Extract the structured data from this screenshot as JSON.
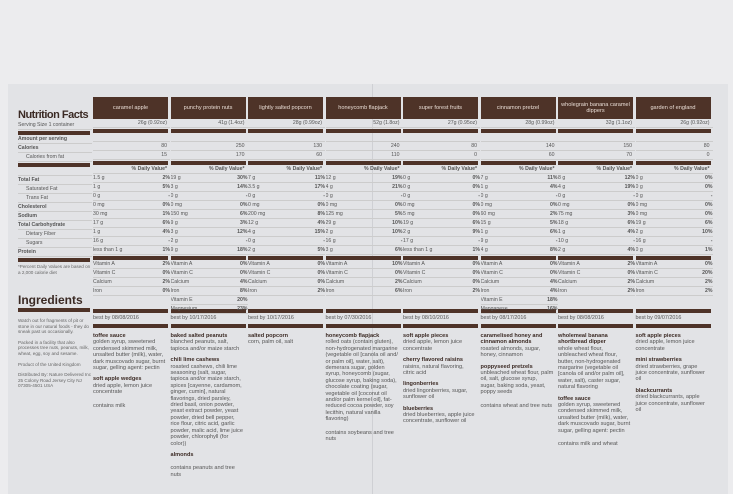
{
  "labels": {
    "title": "Nutrition Facts",
    "serving": "Serving Size 1 container",
    "amount": "Amount per serving",
    "calories": "Calories",
    "calories_fat": "Calories from fat",
    "dv": "% Daily Value*",
    "nutrients": [
      "Total Fat",
      "Saturated Fat",
      "Trans Fat",
      "Cholesterol",
      "Sodium",
      "Total Carbohydrate",
      "Dietary Fiber",
      "Sugars",
      "Protein"
    ],
    "footnote": "*Percent Daily Values are based on a 2,000 calorie diet",
    "ingredients": "Ingredients",
    "notes": [
      "Watch out for fragments of pit or stone in our natural foods - they do sneak past us occasionally.",
      "Packed in a facility that also processes tree nuts, peanuts, milk, wheat, egg, soy and sesame.",
      "Product of the United Kingdom",
      "Distributed By: Nature Delivered Inc 25 Colony Road Jersey City NJ 07305-4501 USA"
    ]
  },
  "colors": {
    "brown": "#4e3328",
    "paper": "#e2e3e6"
  },
  "products": [
    {
      "name": "caramel apple",
      "serving": "26g (0.92oz)",
      "calories": "80",
      "calories_fat": "15",
      "nutrients": [
        [
          "1.5 g",
          "2%"
        ],
        [
          "1 g",
          "5%"
        ],
        [
          "0 g",
          "-"
        ],
        [
          "0 mg",
          "0%"
        ],
        [
          "30 mg",
          "1%"
        ],
        [
          "17 g",
          "6%"
        ],
        [
          "1 g",
          "4%"
        ],
        [
          "16 g",
          "-"
        ],
        [
          "less than 1 g",
          "1%"
        ]
      ],
      "vitamins": [
        [
          "Vitamin A",
          "2%"
        ],
        [
          "Vitamin C",
          "0%"
        ],
        [
          "Calcium",
          "2%"
        ],
        [
          "Iron",
          "0%"
        ]
      ],
      "best_by": "best by 08/08/2016",
      "ingredients": [
        {
          "title": "toffee sauce",
          "text": "golden syrup, sweetened condensed skimmed milk, unsalted butter (milk), water, dark muscovado sugar, burnt sugar, gelling agent: pectin"
        },
        {
          "title": "soft apple wedges",
          "text": "dried apple, lemon juice concentrate"
        }
      ],
      "contains": "contains milk"
    },
    {
      "name": "punchy protein nuts",
      "serving": "41g (1.4oz)",
      "calories": "250",
      "calories_fat": "170",
      "nutrients": [
        [
          "19 g",
          "30%"
        ],
        [
          "3 g",
          "14%"
        ],
        [
          "0 g",
          "-"
        ],
        [
          "0 mg",
          "0%"
        ],
        [
          "150 mg",
          "6%"
        ],
        [
          "9 g",
          "3%"
        ],
        [
          "3 g",
          "12%"
        ],
        [
          "2 g",
          "-"
        ],
        [
          "9 g",
          "18%"
        ]
      ],
      "vitamins": [
        [
          "Vitamin A",
          "0%"
        ],
        [
          "Vitamin C",
          "0%"
        ],
        [
          "Calcium",
          "4%"
        ],
        [
          "Iron",
          "8%"
        ],
        [
          "Vitamin E",
          "20%"
        ],
        [
          "Magnesium",
          "23%"
        ]
      ],
      "best_by": "best by 10/17/2016",
      "ingredients": [
        {
          "title": "baked salted peanuts",
          "text": "blanched peanuts, salt, tapioca and/or maize starch"
        },
        {
          "title": "chili lime cashews",
          "text": "roasted cashews, chili lime seasoning (salt, sugar, tapioca and/or maize starch, spices [cayenne, cardamom, ginger, cumin], natural flavorings, dried parsley, dried basil, onion powder, yeast extract powder, yeast powder, dried bell pepper, rice flour, citric acid, garlic powder, malic acid, lime juice powder, chlorophyll (for color))"
        },
        {
          "title": "almonds",
          "text": ""
        }
      ],
      "contains": "contains peanuts and tree nuts"
    },
    {
      "name": "lightly salted popcorn",
      "serving": "28g (0.99oz)",
      "calories": "130",
      "calories_fat": "60",
      "nutrients": [
        [
          "7 g",
          "11%"
        ],
        [
          "3.5 g",
          "17%"
        ],
        [
          "0 g",
          "-"
        ],
        [
          "0 mg",
          "0%"
        ],
        [
          "200 mg",
          "8%"
        ],
        [
          "12 g",
          "4%"
        ],
        [
          "4 g",
          "15%"
        ],
        [
          "0 g",
          "-"
        ],
        [
          "2 g",
          "5%"
        ]
      ],
      "vitamins": [
        [
          "Vitamin A",
          "0%"
        ],
        [
          "Vitamin C",
          "0%"
        ],
        [
          "Calcium",
          "0%"
        ],
        [
          "Iron",
          "2%"
        ]
      ],
      "best_by": "best by 10/17/2016",
      "ingredients": [
        {
          "title": "salted popcorn",
          "text": "corn, palm oil, salt"
        }
      ],
      "contains": ""
    },
    {
      "name": "honeycomb flapjack",
      "serving": "52g (1.8oz)",
      "calories": "240",
      "calories_fat": "110",
      "nutrients": [
        [
          "12 g",
          "19%"
        ],
        [
          "4 g",
          "21%"
        ],
        [
          "0 g",
          "-"
        ],
        [
          "0 mg",
          "0%"
        ],
        [
          "125 mg",
          "5%"
        ],
        [
          "29 g",
          "10%"
        ],
        [
          "2 g",
          "10%"
        ],
        [
          "16 g",
          "-"
        ],
        [
          "3 g",
          "6%"
        ]
      ],
      "vitamins": [
        [
          "Vitamin A",
          "10%"
        ],
        [
          "Vitamin C",
          "0%"
        ],
        [
          "Calcium",
          "2%"
        ],
        [
          "Iron",
          "6%"
        ]
      ],
      "best_by": "best by 07/30/2016",
      "ingredients": [
        {
          "title": "honeycomb flapjack",
          "text": "rolled oats (contain gluten), non-hydrogenated margarine (vegetable oil [canola oil and/ or palm oil], water, salt), demerara sugar, golden syrup, honeycomb (sugar, glucose syrup, baking soda), chocolate coating (sugar, vegetable oil [coconut oil and/or palm kernel oil], fat-reduced cocoa powder, soy lecithin, natural vanilla flavoring)"
        }
      ],
      "contains": "contains soybeans and tree nuts"
    },
    {
      "name": "super forest fruits",
      "serving": "27g (0.95oz)",
      "calories": "80",
      "calories_fat": "0",
      "nutrients": [
        [
          "0 g",
          "0%"
        ],
        [
          "0 g",
          "0%"
        ],
        [
          "0 g",
          "-"
        ],
        [
          "0 mg",
          "0%"
        ],
        [
          "5 mg",
          "0%"
        ],
        [
          "19 g",
          "6%"
        ],
        [
          "2 g",
          "9%"
        ],
        [
          "17 g",
          "-"
        ],
        [
          "less than 1 g",
          "1%"
        ]
      ],
      "vitamins": [
        [
          "Vitamin A",
          "0%"
        ],
        [
          "Vitamin C",
          "0%"
        ],
        [
          "Calcium",
          "0%"
        ],
        [
          "Iron",
          "2%"
        ]
      ],
      "best_by": "best by 08/10/2016",
      "ingredients": [
        {
          "title": "soft apple pieces",
          "text": "dried apple, lemon juice concentrate"
        },
        {
          "title": "cherry flavored raisins",
          "text": "raisins, natural flavoring, citric acid"
        },
        {
          "title": "lingonberries",
          "text": "dried lingonberries, sugar, sunflower oil"
        },
        {
          "title": "blueberries",
          "text": "dried blueberries, apple juice concentrate, sunflower oil"
        }
      ],
      "contains": ""
    },
    {
      "name": "cinnamon pretzel",
      "serving": "28g (0.99oz)",
      "calories": "140",
      "calories_fat": "60",
      "nutrients": [
        [
          "7 g",
          "11%"
        ],
        [
          "1 g",
          "4%"
        ],
        [
          "0 g",
          "-"
        ],
        [
          "0 mg",
          "0%"
        ],
        [
          "60 mg",
          "2%"
        ],
        [
          "15 g",
          "5%"
        ],
        [
          "1 g",
          "6%"
        ],
        [
          "9 g",
          "-"
        ],
        [
          "4 g",
          "8%"
        ]
      ],
      "vitamins": [
        [
          "Vitamin A",
          "0%"
        ],
        [
          "Vitamin C",
          "0%"
        ],
        [
          "Calcium",
          "4%"
        ],
        [
          "Iron",
          "4%"
        ],
        [
          "Vitamin E",
          "18%"
        ],
        [
          "Manganese",
          "16%"
        ]
      ],
      "best_by": "best by 08/17/2016",
      "ingredients": [
        {
          "title": "caramelised honey and cinnamon almonds",
          "text": "roasted almonds, sugar, honey, cinnamon"
        },
        {
          "title": "poppyseed pretzels",
          "text": "unbleached wheat flour, palm oil, salt, glucose syrup, sugar, baking soda, yeast, poppy seeds"
        }
      ],
      "contains": "contains wheat and tree nuts"
    },
    {
      "name": "wholegrain banana caramel dippers",
      "serving": "32g (1.1oz)",
      "calories": "150",
      "calories_fat": "70",
      "nutrients": [
        [
          "8 g",
          "12%"
        ],
        [
          "4 g",
          "19%"
        ],
        [
          "0 g",
          "-"
        ],
        [
          "0 mg",
          "0%"
        ],
        [
          "75 mg",
          "3%"
        ],
        [
          "18 g",
          "6%"
        ],
        [
          "1 g",
          "4%"
        ],
        [
          "10 g",
          "-"
        ],
        [
          "2 g",
          "4%"
        ]
      ],
      "vitamins": [
        [
          "Vitamin A",
          "2%"
        ],
        [
          "Vitamin C",
          "0%"
        ],
        [
          "Calcium",
          "2%"
        ],
        [
          "Iron",
          "2%"
        ]
      ],
      "best_by": "best by 08/08/2016",
      "ingredients": [
        {
          "title": "wholemeal banana shortbread dipper",
          "text": "whole wheat flour, unbleached wheat flour, butter, non-hydrogenated margarine (vegetable oil [canola oil and/or palm oil], water, salt), caster sugar, natural flavoring"
        },
        {
          "title": "toffee sauce",
          "text": "golden syrup, sweetened condensed skimmed milk, unsalted butter (milk), water, dark muscovado sugar, burnt sugar, gelling agent: pectin"
        }
      ],
      "contains": "contains milk and wheat"
    },
    {
      "name": "garden of england",
      "serving": "26g (0.92oz)",
      "calories": "80",
      "calories_fat": "0",
      "nutrients": [
        [
          "0 g",
          "0%"
        ],
        [
          "0 g",
          "0%"
        ],
        [
          "0 g",
          "-"
        ],
        [
          "0 mg",
          "0%"
        ],
        [
          "0 mg",
          "0%"
        ],
        [
          "19 g",
          "6%"
        ],
        [
          "2 g",
          "10%"
        ],
        [
          "16 g",
          "-"
        ],
        [
          "0 g",
          "1%"
        ]
      ],
      "vitamins": [
        [
          "Vitamin A",
          "0%"
        ],
        [
          "Vitamin C",
          "20%"
        ],
        [
          "Calcium",
          "2%"
        ],
        [
          "Iron",
          "2%"
        ]
      ],
      "best_by": "best by 09/07/2016",
      "ingredients": [
        {
          "title": "soft apple pieces",
          "text": "dried apple, lemon juice concentrate"
        },
        {
          "title": "mini strawberries",
          "text": "dried strawberries, grape juice concentrate, sunflower oil"
        },
        {
          "title": "blackcurrants",
          "text": "dried blackcurrants, apple juice concentrate, sunflower oil"
        }
      ],
      "contains": ""
    }
  ]
}
